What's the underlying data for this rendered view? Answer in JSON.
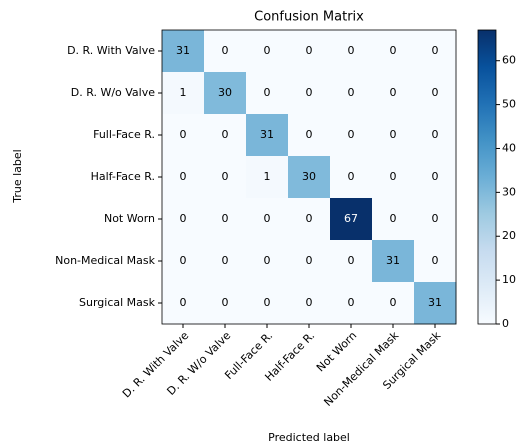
{
  "chart_data": {
    "type": "heatmap",
    "title": "Confusion Matrix",
    "x_label": "Predicted label",
    "y_label": "True label",
    "categories": [
      "D. R. With Valve",
      "D. R. W/o Valve",
      "Full-Face R.",
      "Half-Face R.",
      "Not Worn",
      "Non-Medical Mask",
      "Surgical Mask"
    ],
    "values": [
      [
        31,
        0,
        0,
        0,
        0,
        0,
        0
      ],
      [
        1,
        30,
        0,
        0,
        0,
        0,
        0
      ],
      [
        0,
        0,
        31,
        0,
        0,
        0,
        0
      ],
      [
        0,
        0,
        1,
        30,
        0,
        0,
        0
      ],
      [
        0,
        0,
        0,
        0,
        67,
        0,
        0
      ],
      [
        0,
        0,
        0,
        0,
        0,
        31,
        0
      ],
      [
        0,
        0,
        0,
        0,
        0,
        0,
        31
      ]
    ],
    "colormap": "Blues",
    "clim": [
      0,
      67
    ],
    "colorbar_ticks": [
      0,
      10,
      20,
      30,
      40,
      50,
      60
    ]
  }
}
